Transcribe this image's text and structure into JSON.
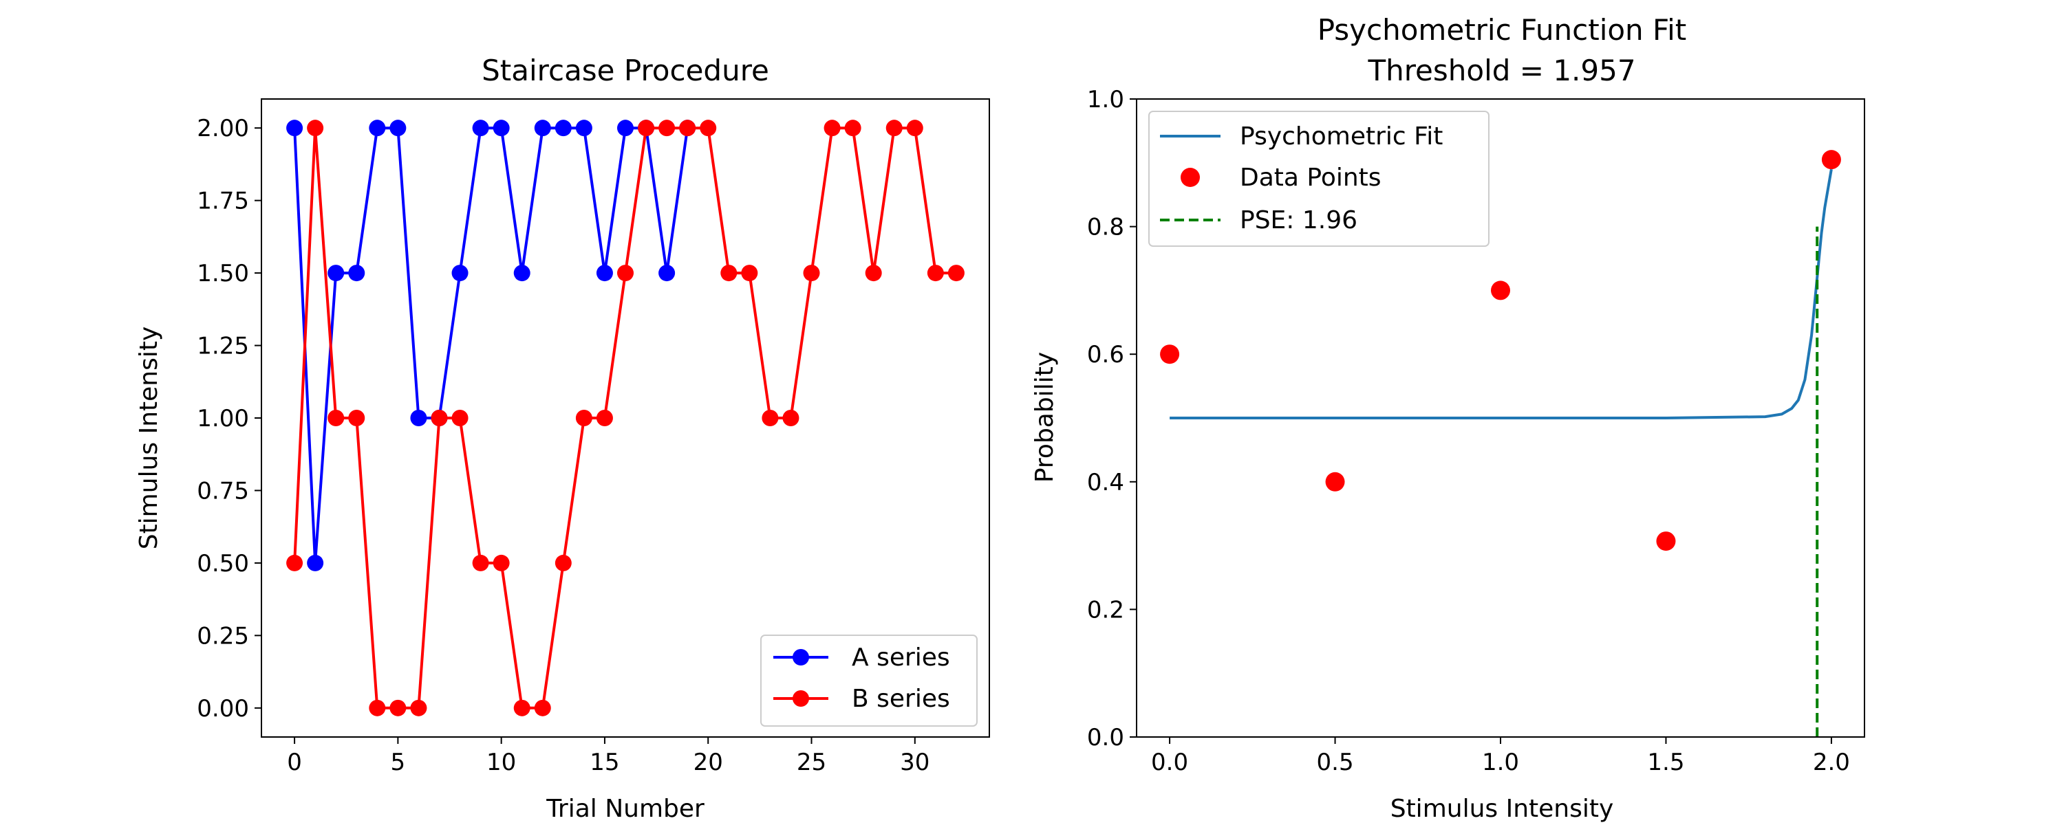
{
  "chart_data": [
    {
      "type": "line",
      "title": "Staircase Procedure",
      "xlabel": "Trial Number",
      "ylabel": "Stimulus Intensity",
      "xlim": [
        -1.6,
        33.6
      ],
      "ylim": [
        -0.1,
        2.1
      ],
      "xticks": [
        0,
        5,
        10,
        15,
        20,
        25,
        30
      ],
      "xtick_labels": [
        "0",
        "5",
        "10",
        "15",
        "20",
        "25",
        "30"
      ],
      "yticks": [
        0,
        0.25,
        0.5,
        0.75,
        1.0,
        1.25,
        1.5,
        1.75,
        2.0
      ],
      "ytick_labels": [
        "0.00",
        "0.25",
        "0.50",
        "0.75",
        "1.00",
        "1.25",
        "1.50",
        "1.75",
        "2.00"
      ],
      "grid": false,
      "legend_position": "lower-right",
      "series": [
        {
          "name": "A series",
          "color": "#0000ff",
          "marker": "circle",
          "x": [
            0,
            1,
            2,
            3,
            4,
            5,
            6,
            7,
            8,
            9,
            10,
            11,
            12,
            13,
            14,
            15,
            16,
            17,
            18,
            19
          ],
          "y": [
            2.0,
            0.5,
            1.5,
            1.5,
            2.0,
            2.0,
            1.0,
            1.0,
            1.5,
            2.0,
            2.0,
            1.5,
            2.0,
            2.0,
            2.0,
            1.5,
            2.0,
            2.0,
            1.5,
            2.0
          ]
        },
        {
          "name": "B series",
          "color": "#ff0000",
          "marker": "circle",
          "x": [
            0,
            1,
            2,
            3,
            4,
            5,
            6,
            7,
            8,
            9,
            10,
            11,
            12,
            13,
            14,
            15,
            16,
            17,
            18,
            19,
            20,
            21,
            22,
            23,
            24,
            25,
            26,
            27,
            28,
            29,
            30,
            31,
            32
          ],
          "y": [
            0.5,
            2.0,
            1.0,
            1.0,
            0.0,
            0.0,
            0.0,
            1.0,
            1.0,
            0.5,
            0.5,
            0.0,
            0.0,
            0.5,
            1.0,
            1.0,
            1.5,
            2.0,
            2.0,
            2.0,
            2.0,
            1.5,
            1.5,
            1.0,
            1.0,
            1.5,
            2.0,
            2.0,
            1.5,
            2.0,
            2.0,
            1.5,
            1.5
          ]
        }
      ]
    },
    {
      "type": "line",
      "title": "Psychometric Function Fit",
      "subtitle": "Threshold = 1.957",
      "xlabel": "Stimulus Intensity",
      "ylabel": "Probability",
      "xlim": [
        -0.1,
        2.1
      ],
      "ylim": [
        0.0,
        1.0
      ],
      "xticks": [
        0,
        0.5,
        1.0,
        1.5,
        2.0
      ],
      "xtick_labels": [
        "0.0",
        "0.5",
        "1.0",
        "1.5",
        "2.0"
      ],
      "yticks": [
        0,
        0.2,
        0.4,
        0.6,
        0.8,
        1.0
      ],
      "ytick_labels": [
        "0.0",
        "0.2",
        "0.4",
        "0.6",
        "0.8",
        "1.0"
      ],
      "grid": false,
      "legend_position": "upper-left",
      "series": [
        {
          "name": "Psychometric Fit",
          "color": "#1f77b4",
          "style": "line",
          "x": [
            0.0,
            0.5,
            1.0,
            1.5,
            1.8,
            1.85,
            1.88,
            1.9,
            1.92,
            1.94,
            1.957,
            1.97,
            1.98,
            2.0
          ],
          "y": [
            0.5,
            0.5,
            0.5,
            0.5,
            0.502,
            0.506,
            0.515,
            0.528,
            0.56,
            0.63,
            0.72,
            0.79,
            0.83,
            0.89
          ]
        },
        {
          "name": "Data Points",
          "color": "#ff0000",
          "style": "markers",
          "x": [
            0.0,
            0.5,
            1.0,
            1.5,
            2.0
          ],
          "y": [
            0.6,
            0.4,
            0.7,
            0.307,
            0.905
          ]
        },
        {
          "name": "PSE: 1.96",
          "color": "#008000",
          "style": "dashed-vline",
          "x": [
            1.957,
            1.957
          ],
          "y": [
            0.0,
            0.8
          ]
        }
      ]
    }
  ]
}
